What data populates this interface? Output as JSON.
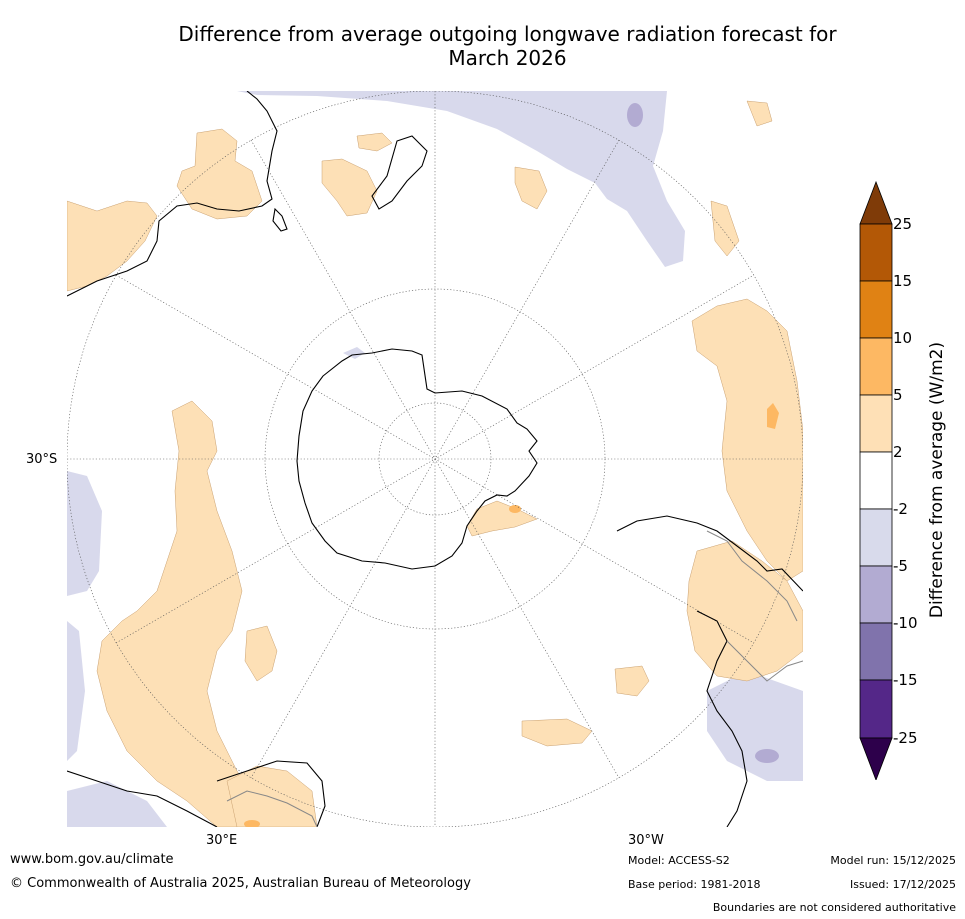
{
  "title_line1": "Difference from average outgoing longwave radiation forecast for",
  "title_line2": "March 2026",
  "map": {
    "projection": "south-polar-stereographic",
    "lat_labels": [
      "30°S"
    ],
    "lon_labels": [
      "30°E",
      "30°W"
    ],
    "colors": {
      "warm_light": "#fde0b6",
      "warm_mid": "#fdb863",
      "cool_light": "#d8d9ec",
      "cool_mid": "#b2abd2",
      "coast": "#000000",
      "border": "#888888"
    }
  },
  "legend": {
    "title": "Difference from average (W/m2)",
    "tick_labels": [
      "25",
      "15",
      "10",
      "5",
      "2",
      "-2",
      "-5",
      "-10",
      "-15",
      "-25"
    ],
    "colors": [
      "#7f3b08",
      "#b35806",
      "#e08214",
      "#fdb863",
      "#fee0b6",
      "#ffffff",
      "#d8daeb",
      "#b2abd2",
      "#8073ac",
      "#542788",
      "#2d004b"
    ]
  },
  "footer": {
    "website": "www.bom.gov.au/climate",
    "copyright": "© Commonwealth of Australia 2025, Australian Bureau of Meteorology",
    "model": "Model: ACCESS-S2",
    "base_period": "Base period: 1981-2018",
    "model_run": "Model run: 15/12/2025",
    "issued": "Issued: 17/12/2025",
    "disclaimer": "Boundaries are not considered authoritative"
  }
}
